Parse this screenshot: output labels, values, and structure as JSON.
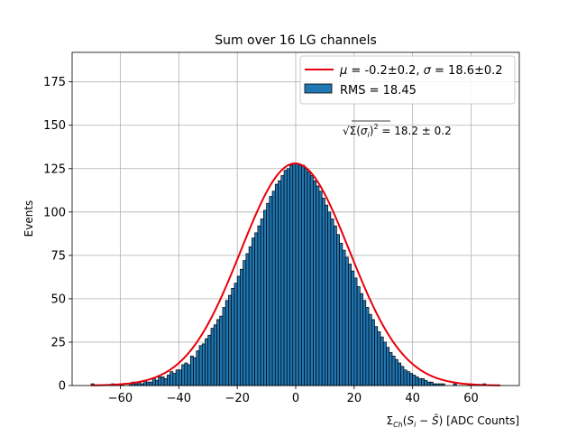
{
  "chart_data": {
    "type": "bar",
    "title": "Sum over 16 LG channels",
    "xlabel": "Σ_Ch(S_i − S̄) [ADC Counts]",
    "ylabel": "Events",
    "xlim": [
      -76.5,
      76.5
    ],
    "ylim": [
      0,
      192
    ],
    "xticks": [
      "−60",
      "−40",
      "−20",
      "0",
      "20",
      "40",
      "60"
    ],
    "xtick_values": [
      -60,
      -40,
      -20,
      0,
      20,
      40,
      60
    ],
    "yticks": [
      "0",
      "25",
      "50",
      "75",
      "100",
      "125",
      "150",
      "175"
    ],
    "ytick_values": [
      0,
      25,
      50,
      75,
      100,
      125,
      150,
      175
    ],
    "grid": true,
    "legend_position": "top-right",
    "bin_width": 1,
    "bin_start": -70,
    "series": [
      {
        "name": "RMS = 18.45",
        "color": "#1f77b4",
        "counts": [
          1,
          0,
          0,
          0,
          0,
          0,
          0,
          1,
          0,
          0,
          1,
          0,
          0,
          1,
          2,
          1,
          2,
          1,
          3,
          2,
          2,
          4,
          3,
          5,
          5,
          4,
          6,
          8,
          7,
          9,
          9,
          12,
          13,
          12,
          17,
          16,
          20,
          23,
          24,
          27,
          29,
          33,
          35,
          38,
          40,
          45,
          49,
          52,
          56,
          59,
          63,
          67,
          72,
          76,
          80,
          85,
          88,
          92,
          96,
          101,
          105,
          109,
          112,
          116,
          118,
          121,
          124,
          125,
          127,
          128,
          128,
          127,
          127,
          125,
          123,
          121,
          118,
          115,
          112,
          108,
          104,
          100,
          96,
          92,
          87,
          82,
          78,
          74,
          70,
          66,
          62,
          57,
          53,
          49,
          45,
          41,
          38,
          34,
          31,
          28,
          25,
          22,
          19,
          17,
          15,
          13,
          11,
          9,
          8,
          7,
          6,
          5,
          4,
          4,
          3,
          2,
          2,
          1,
          1,
          1,
          1,
          0,
          0,
          0,
          1,
          0,
          0,
          0,
          0,
          1,
          0,
          0,
          0,
          0,
          1,
          0,
          0,
          0
        ]
      },
      {
        "name": "μ = -0.2±0.2, σ = 18.6±0.2",
        "type": "line",
        "color": "#e8000b",
        "mu": -0.2,
        "sigma": 18.6,
        "amplitude": 128,
        "x_range": [
          -70,
          70
        ]
      }
    ],
    "annotation": "√Σ(σ_i)² = 18.2 ± 0.2"
  }
}
